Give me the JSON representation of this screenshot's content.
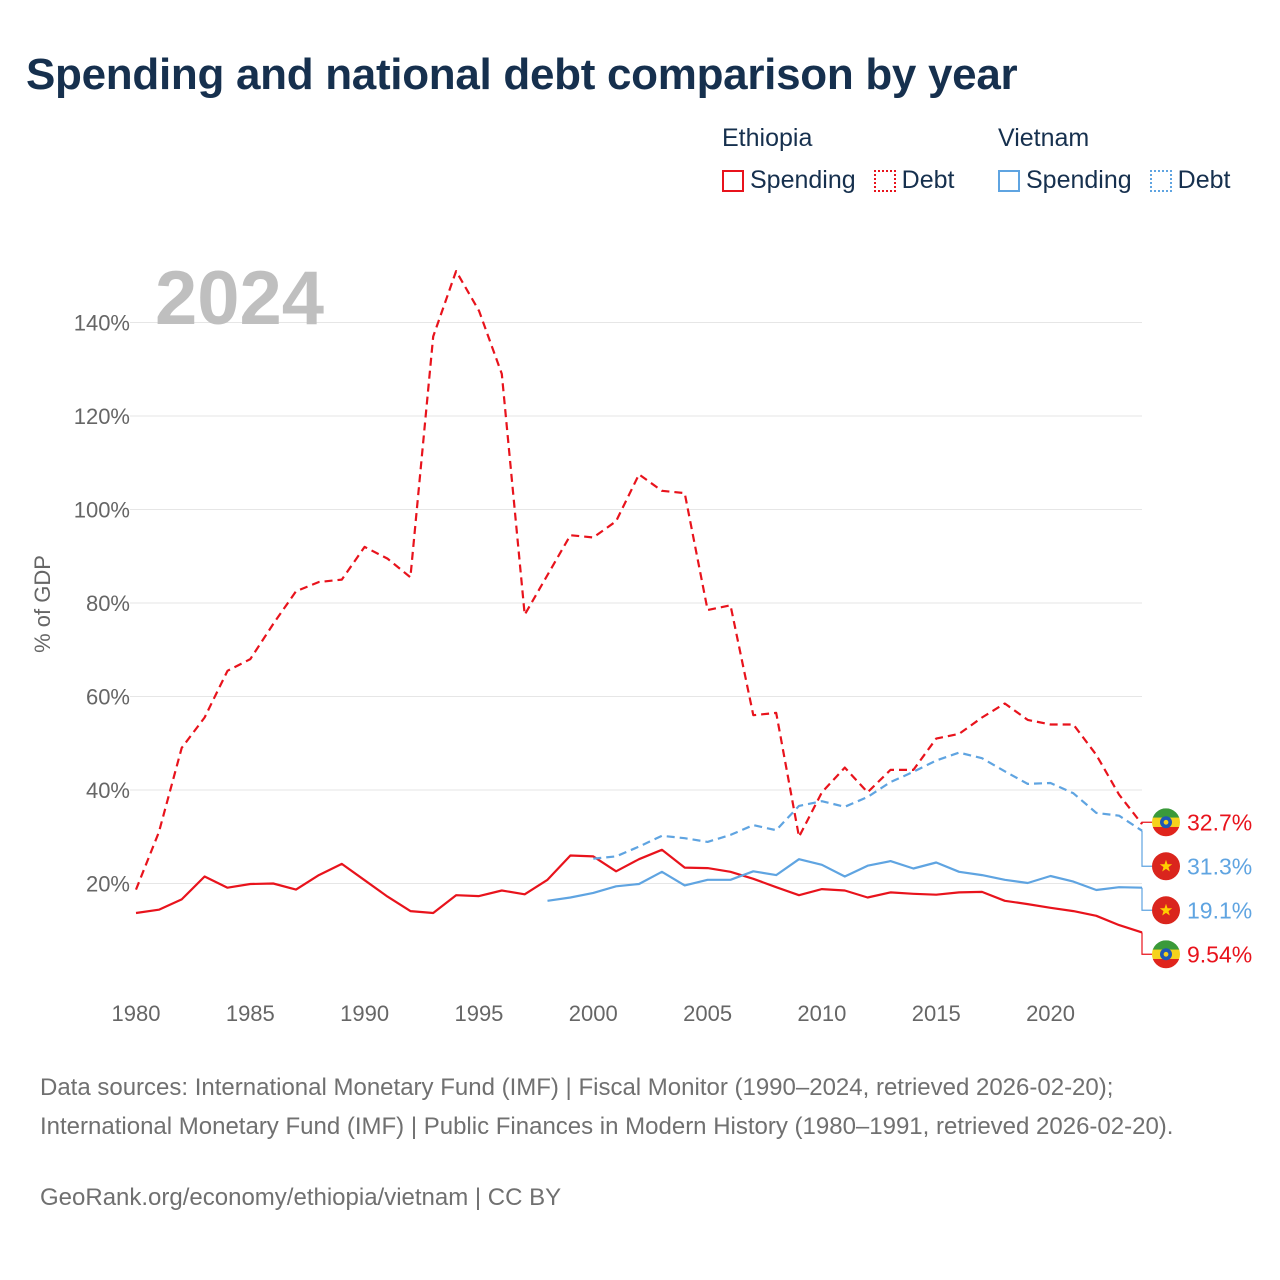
{
  "title": "Spending and national debt comparison by year",
  "legend": {
    "groups": [
      {
        "name": "Ethiopia",
        "color": "#e8131c",
        "items": [
          {
            "label": "Spending",
            "style": "solid"
          },
          {
            "label": "Debt",
            "style": "dotted"
          }
        ]
      },
      {
        "name": "Vietnam",
        "color": "#5fa4e1",
        "items": [
          {
            "label": "Spending",
            "style": "solid"
          },
          {
            "label": "Debt",
            "style": "dotted"
          }
        ]
      }
    ]
  },
  "chart_data": {
    "type": "line",
    "title": "Spending and national debt comparison by year",
    "year_label": "2024",
    "xlabel": "",
    "ylabel": "% of GDP",
    "xlim": [
      1980,
      2024
    ],
    "ylim": [
      0,
      150
    ],
    "x_ticks": [
      "1980",
      "1985",
      "1990",
      "1995",
      "2000",
      "2005",
      "2010",
      "2015",
      "2020"
    ],
    "y_ticks": [
      "20%",
      "40%",
      "60%",
      "80%",
      "100%",
      "120%",
      "140%"
    ],
    "y_tick_values": [
      20,
      40,
      60,
      80,
      100,
      120,
      140
    ],
    "series": [
      {
        "name": "Ethiopia Debt",
        "country": "Ethiopia",
        "metric": "Debt",
        "color": "#e8131c",
        "dash": true,
        "start_year": 1980,
        "values": [
          18.7,
          31,
          49,
          55.5,
          65.5,
          68,
          75.5,
          82.5,
          84.5,
          85,
          92,
          89.5,
          85.5,
          137,
          151,
          142.5,
          129,
          77.5,
          86,
          94.5,
          94,
          97.5,
          107.5,
          104,
          103.5,
          78.5,
          79.5,
          56,
          56.5,
          30,
          39.5,
          44.8,
          39.5,
          44.3,
          44.3,
          51,
          52,
          55.5,
          58.5,
          55,
          54,
          54,
          47.5,
          39,
          32.7
        ],
        "end_label": "32.7%",
        "flag": "ethiopia"
      },
      {
        "name": "Ethiopia Spending",
        "country": "Ethiopia",
        "metric": "Spending",
        "color": "#e8131c",
        "dash": false,
        "start_year": 1980,
        "values": [
          13.7,
          14.4,
          16.6,
          21.5,
          19.1,
          19.9,
          20,
          18.7,
          21.8,
          24.2,
          20.7,
          17.2,
          14.1,
          13.7,
          17.5,
          17.3,
          18.5,
          17.7,
          20.8,
          26,
          25.8,
          22.6,
          25.2,
          27.2,
          23.4,
          23.3,
          22.5,
          21,
          19.2,
          17.5,
          18.8,
          18.5,
          17,
          18.1,
          17.8,
          17.6,
          18.1,
          18.2,
          16.3,
          15.6,
          14.8,
          14.1,
          13.1,
          11.1,
          9.54
        ],
        "end_label": "9.54%",
        "flag": "ethiopia"
      },
      {
        "name": "Vietnam Debt",
        "country": "Vietnam",
        "metric": "Debt",
        "color": "#5fa4e1",
        "dash": true,
        "start_year": 2000,
        "values": [
          25.3,
          25.8,
          27.9,
          30.2,
          29.7,
          28.9,
          30.4,
          32.5,
          31.4,
          36.6,
          37.6,
          36.4,
          38.5,
          41.7,
          43.9,
          46.3,
          48,
          46.8,
          44,
          41.3,
          41.5,
          39.3,
          35.1,
          34.5,
          31.3
        ],
        "end_label": "31.3%",
        "flag": "vietnam"
      },
      {
        "name": "Vietnam Spending",
        "country": "Vietnam",
        "metric": "Spending",
        "color": "#5fa4e1",
        "dash": false,
        "start_year": 1998,
        "values": [
          16.3,
          17,
          18,
          19.4,
          19.9,
          22.5,
          19.6,
          20.8,
          20.8,
          22.6,
          21.8,
          25.2,
          24,
          21.5,
          23.8,
          24.8,
          23.2,
          24.5,
          22.5,
          21.8,
          20.8,
          20.1,
          21.6,
          20.4,
          18.6,
          19.2,
          19.1
        ],
        "end_label": "19.1%",
        "flag": "vietnam"
      }
    ]
  },
  "sources": "Data sources: International Monetary Fund (IMF) | Fiscal Monitor (1990–2024, retrieved 2026-02-20); International Monetary Fund (IMF) | Public Finances in Modern History (1980–1991, retrieved 2026-02-20).",
  "footer": "GeoRank.org/economy/ethiopia/vietnam | CC BY"
}
